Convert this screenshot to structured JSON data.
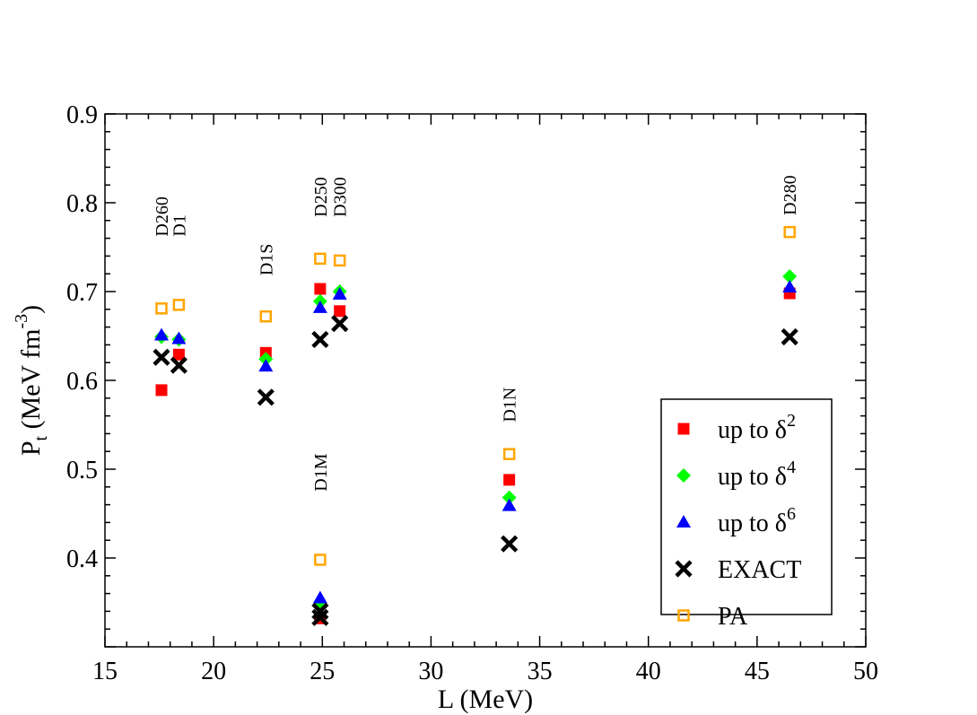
{
  "chart_data": {
    "type": "scatter",
    "xlabel": "L (MeV)",
    "ylabel": "P",
    "ylabel_sub": "t",
    "ylabel_units": " (MeV fm",
    "ylabel_units_sup": "-3",
    "ylabel_units_close": ")",
    "xlim": [
      15,
      50
    ],
    "ylim": [
      0.3,
      0.9
    ],
    "x_ticks": [
      15,
      20,
      25,
      30,
      35,
      40,
      45,
      50
    ],
    "x_tick_labels": [
      "15",
      "20",
      "25",
      "30",
      "35",
      "40",
      "45",
      "50"
    ],
    "y_ticks": [
      0.4,
      0.5,
      0.6,
      0.7,
      0.8,
      0.9
    ],
    "y_tick_labels": [
      "0.4",
      "0.5",
      "0.6",
      "0.7",
      "0.8",
      "0.9"
    ],
    "legend_position": "bottom-right",
    "series": [
      {
        "key": "d2",
        "name": "up to δ",
        "sup": "2",
        "marker": "square-filled",
        "color": "#ff0000",
        "points": [
          [
            17.6,
            0.589
          ],
          [
            18.4,
            0.629
          ],
          [
            22.4,
            0.631
          ],
          [
            24.9,
            0.703
          ],
          [
            25.8,
            0.678
          ],
          [
            24.9,
            0.332
          ],
          [
            33.6,
            0.488
          ],
          [
            46.5,
            0.698
          ]
        ]
      },
      {
        "key": "d4",
        "name": "up to δ",
        "sup": "4",
        "marker": "diamond",
        "color": "#00ff00",
        "points": [
          [
            17.6,
            0.649
          ],
          [
            18.4,
            0.646
          ],
          [
            22.4,
            0.624
          ],
          [
            24.9,
            0.689
          ],
          [
            25.8,
            0.7
          ],
          [
            24.9,
            0.346
          ],
          [
            33.6,
            0.468
          ],
          [
            46.5,
            0.717
          ]
        ]
      },
      {
        "key": "d6",
        "name": "up to δ",
        "sup": "6",
        "marker": "triangle",
        "color": "#0000ff",
        "points": [
          [
            17.6,
            0.651
          ],
          [
            18.4,
            0.647
          ],
          [
            22.4,
            0.616
          ],
          [
            24.9,
            0.682
          ],
          [
            25.8,
            0.697
          ],
          [
            24.9,
            0.355
          ],
          [
            33.6,
            0.459
          ],
          [
            46.5,
            0.705
          ]
        ]
      },
      {
        "key": "exact",
        "name": "EXACT",
        "sup": "",
        "marker": "x",
        "color": "#000000",
        "points": [
          [
            17.6,
            0.626
          ],
          [
            18.4,
            0.617
          ],
          [
            22.4,
            0.581
          ],
          [
            24.9,
            0.646
          ],
          [
            25.8,
            0.664
          ],
          [
            24.9,
            0.34
          ],
          [
            24.9,
            0.333
          ],
          [
            33.6,
            0.416
          ],
          [
            46.5,
            0.649
          ]
        ]
      },
      {
        "key": "pa",
        "name": "PA",
        "sup": "",
        "marker": "square-open",
        "color": "#ffa500",
        "points": [
          [
            17.6,
            0.681
          ],
          [
            18.4,
            0.685
          ],
          [
            22.4,
            0.672
          ],
          [
            24.9,
            0.737
          ],
          [
            25.8,
            0.735
          ],
          [
            24.9,
            0.398
          ],
          [
            33.6,
            0.517
          ],
          [
            46.5,
            0.767
          ]
        ]
      }
    ],
    "annotations": [
      {
        "text": "D260",
        "x": 17.6,
        "y": 0.762
      },
      {
        "text": "D1",
        "x": 18.4,
        "y": 0.762
      },
      {
        "text": "D1S",
        "x": 22.4,
        "y": 0.718
      },
      {
        "text": "D250",
        "x": 24.9,
        "y": 0.784
      },
      {
        "text": "D300",
        "x": 25.8,
        "y": 0.784
      },
      {
        "text": "D280",
        "x": 46.5,
        "y": 0.786
      },
      {
        "text": "D1M",
        "x": 24.9,
        "y": 0.475
      },
      {
        "text": "D1N",
        "x": 33.6,
        "y": 0.553
      }
    ]
  }
}
